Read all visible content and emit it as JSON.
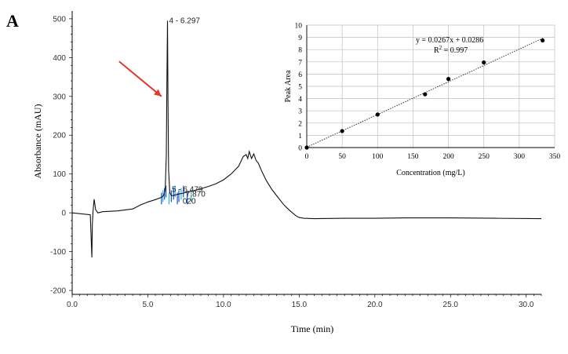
{
  "panel_label": "A",
  "colors": {
    "trace": "#111111",
    "arrow": "#e03a2e",
    "axis": "#000000",
    "grid": "#bfbfbf",
    "cluster_blue": "#1f4fd6",
    "cluster_cyan": "#22b8d0",
    "fit_line": "#333333"
  },
  "chart_data": [
    {
      "type": "line",
      "xlabel": "Time (min)",
      "ylabel": "Absorbance (mAU)",
      "xlim": [
        0,
        31
      ],
      "ylim": [
        -210,
        520
      ],
      "x_ticks": [
        "0.0",
        "5.0",
        "10.0",
        "15.0",
        "20.0",
        "25.0",
        "30.0"
      ],
      "x_tick_values": [
        0,
        5,
        10,
        15,
        20,
        25,
        30
      ],
      "y_ticks": [
        "500",
        "400",
        "300",
        "200",
        "100",
        "0",
        "-100",
        "-200"
      ],
      "y_tick_values": [
        500,
        400,
        300,
        200,
        100,
        0,
        -100,
        -200
      ],
      "grid": false,
      "series": [
        {
          "x": [
            0.0,
            1.2,
            1.3,
            1.33,
            1.38,
            1.45,
            1.55,
            1.7,
            2.0,
            3.0,
            4.0,
            4.5,
            5.0,
            5.5,
            5.9,
            6.05,
            6.15,
            6.22,
            6.26,
            6.297,
            6.33,
            6.37,
            6.45,
            6.55,
            6.7,
            7.0,
            7.5,
            8.0,
            8.5,
            9.0,
            9.5,
            10.0,
            10.5,
            11.0,
            11.3,
            11.5,
            11.6,
            11.7,
            11.85,
            12.0,
            12.15,
            12.3,
            12.5,
            12.8,
            13.2,
            13.6,
            14.0,
            14.4,
            14.8,
            15.0,
            15.3,
            16.0,
            18.0,
            20.0,
            22.0,
            25.0,
            28.0,
            31.0
          ],
          "y": [
            0,
            -5,
            -115,
            -30,
            5,
            35,
            8,
            0,
            3,
            5,
            10,
            20,
            28,
            34,
            40,
            45,
            60,
            150,
            350,
            495,
            300,
            110,
            52,
            44,
            45,
            48,
            52,
            57,
            62,
            68,
            75,
            85,
            100,
            120,
            145,
            150,
            140,
            158,
            140,
            152,
            135,
            128,
            110,
            85,
            60,
            40,
            20,
            5,
            -8,
            -12,
            -14,
            -15,
            -14,
            -14,
            -13,
            -13,
            -14,
            -15
          ]
        }
      ],
      "peak_labels": [
        {
          "text": "4 - 6.297",
          "x": 6.297,
          "y": 495
        },
        {
          "text": "5 - 6.479",
          "x": 6.479,
          "y": 60
        },
        {
          "text": "7.870",
          "x": 7.4,
          "y": 48
        },
        {
          "text": "020",
          "x": 7.2,
          "y": 30
        }
      ],
      "cluster_marks_x": [
        5.9,
        6.0,
        6.1,
        6.2,
        6.4,
        6.55,
        6.7,
        6.8,
        6.95,
        7.05,
        7.2,
        7.35,
        7.6,
        7.87
      ],
      "arrow": {
        "from": [
          3.1,
          390
        ],
        "to": [
          5.9,
          300
        ]
      }
    },
    {
      "type": "scatter",
      "xlabel": "Concentration (mg/L)",
      "ylabel": "Peak Area",
      "xlim": [
        0,
        350
      ],
      "ylim": [
        0,
        10
      ],
      "x_ticks": [
        "0",
        "50",
        "100",
        "150",
        "200",
        "250",
        "300",
        "350"
      ],
      "x_tick_values": [
        0,
        50,
        100,
        150,
        200,
        250,
        300,
        350
      ],
      "y_ticks": [
        "0",
        "1",
        "2",
        "3",
        "4",
        "5",
        "6",
        "7",
        "8",
        "9",
        "10"
      ],
      "y_tick_values": [
        0,
        1,
        2,
        3,
        4,
        5,
        6,
        7,
        8,
        9,
        10
      ],
      "grid": true,
      "x": [
        0,
        50,
        100,
        167,
        200,
        250,
        333
      ],
      "y": [
        0.0,
        1.35,
        2.7,
        4.35,
        5.6,
        6.95,
        8.75
      ],
      "fit": {
        "slope": 0.0267,
        "intercept": 0.0286
      },
      "equation": "y = 0.0267x + 0.0286",
      "r2_prefix": "R",
      "r2_sup": "2",
      "r2_suffix": " = 0.997"
    }
  ]
}
